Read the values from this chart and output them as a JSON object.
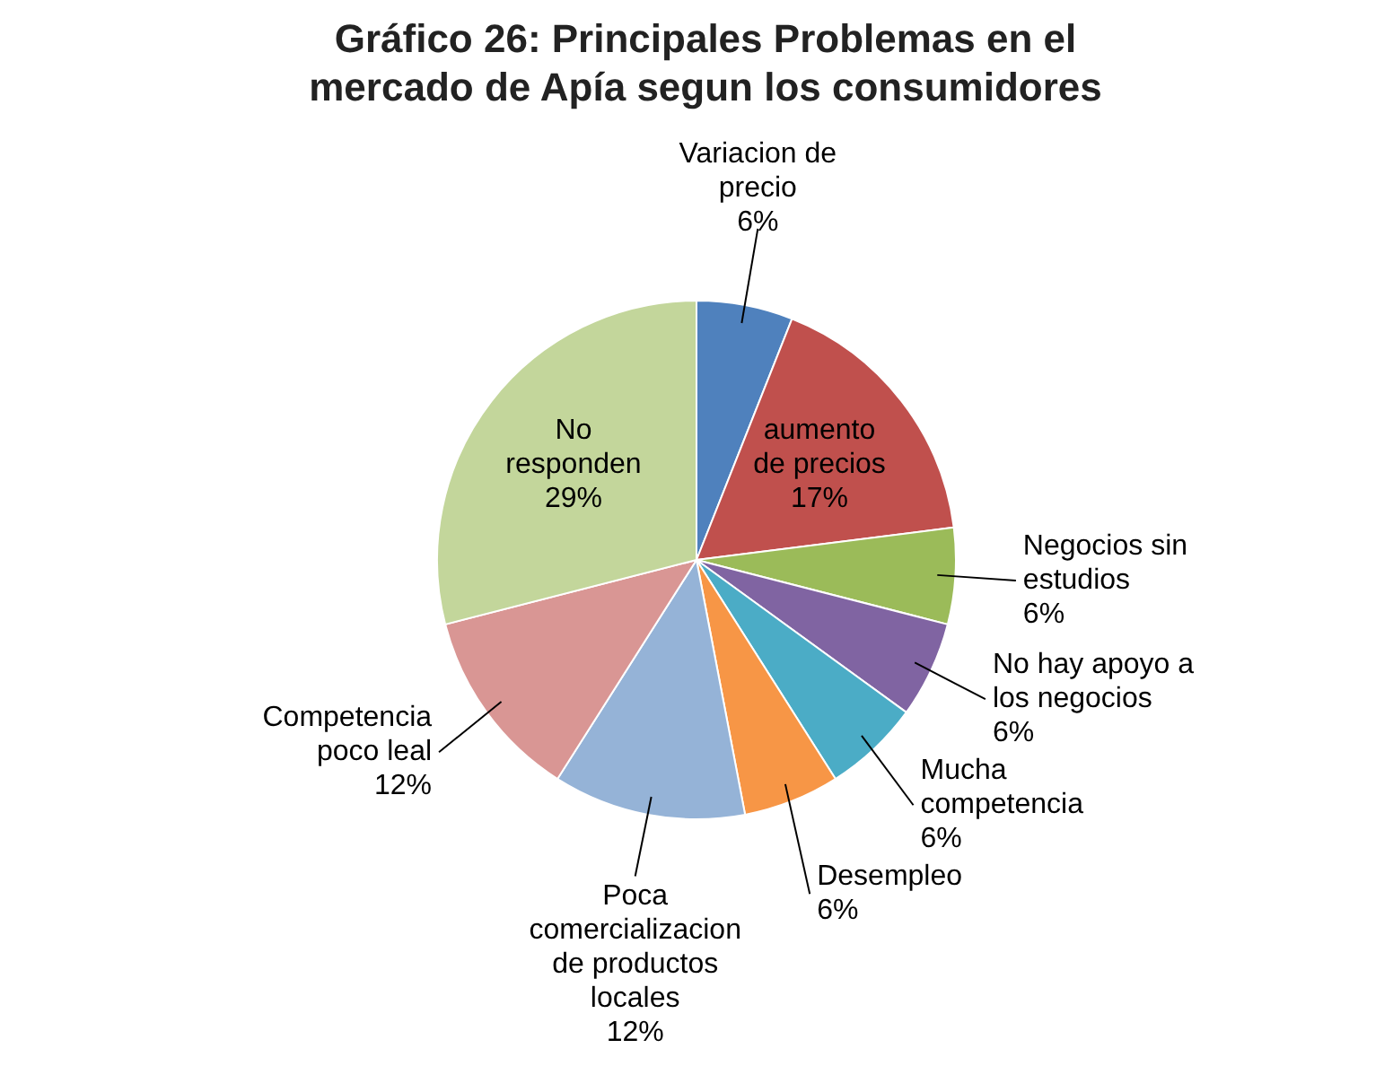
{
  "chart_data": {
    "type": "pie",
    "title": "Gráfico 26: Principales Problemas en el mercado de Apía segun los consumidores",
    "categories": [
      "Variacion de precio",
      "aumento de precios",
      "Negocios sin estudios",
      "No hay apoyo a los negocios",
      "Mucha competencia",
      "Desempleo",
      "Poca comercializacion de productos locales",
      "Competencia poco leal",
      "No responden"
    ],
    "values": [
      6,
      17,
      6,
      6,
      6,
      6,
      12,
      12,
      29
    ],
    "colors": [
      "#4f81bd",
      "#c0504d",
      "#9bbb59",
      "#8064a2",
      "#4bacc6",
      "#f79646",
      "#95b3d7",
      "#d99694",
      "#c3d69b"
    ],
    "value_labels": [
      "6%",
      "17%",
      "6%",
      "6%",
      "6%",
      "6%",
      "12%",
      "12%",
      "29%"
    ],
    "legend": false
  }
}
